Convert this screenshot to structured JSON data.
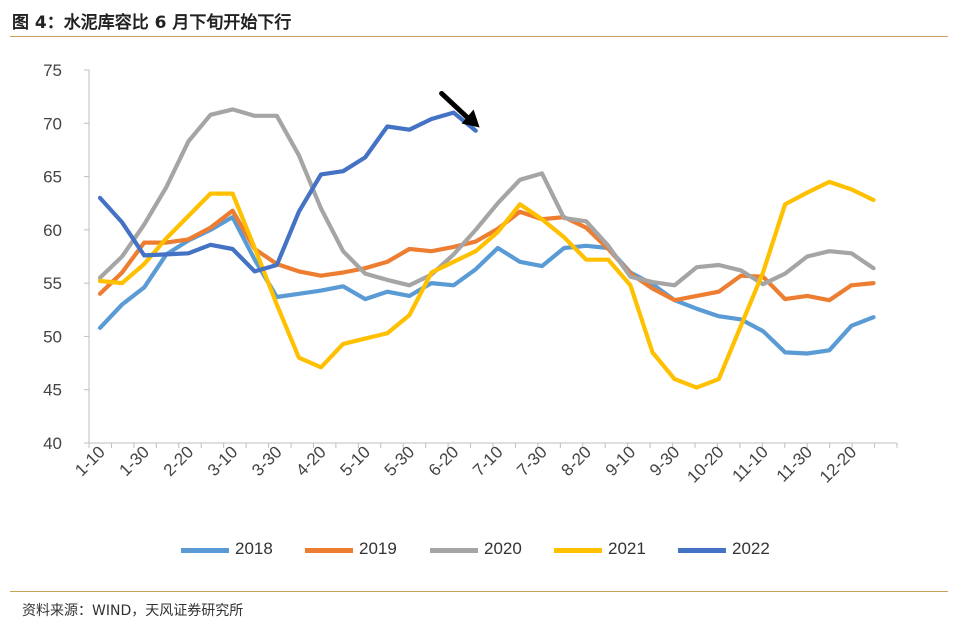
{
  "title": "图 4：水泥库容比 6 月下旬开始下行",
  "source": "资料来源：WIND，天风证券研究所",
  "chart_data": {
    "type": "line",
    "x": [
      "1-10",
      "1-20",
      "1-30",
      "2-10",
      "2-20",
      "2-28",
      "3-10",
      "3-20",
      "3-30",
      "4-10",
      "4-20",
      "4-30",
      "5-10",
      "5-20",
      "5-30",
      "6-10",
      "6-20",
      "6-30",
      "7-10",
      "7-20",
      "7-30",
      "8-10",
      "8-20",
      "8-30",
      "9-10",
      "9-20",
      "9-30",
      "10-10",
      "10-20",
      "10-30",
      "11-10",
      "11-20",
      "11-30",
      "12-10",
      "12-20",
      "12-30"
    ],
    "x_tick_labels": [
      "1-10",
      "1-30",
      "2-20",
      "3-10",
      "3-30",
      "4-20",
      "5-10",
      "5-30",
      "6-20",
      "7-10",
      "7-30",
      "8-20",
      "9-10",
      "9-30",
      "10-20",
      "11-10",
      "11-30",
      "12-20"
    ],
    "ylim": [
      40,
      75
    ],
    "yticks": [
      40,
      45,
      50,
      55,
      60,
      65,
      70,
      75
    ],
    "grid": false,
    "legend_position": "bottom",
    "annotation": "arrow-down-right-after-6-20",
    "series": [
      {
        "name": "2018",
        "color": "#5B9BD5",
        "values": [
          50.8,
          53.0,
          54.6,
          57.7,
          59.0,
          60.0,
          61.2,
          57.2,
          53.7,
          54.0,
          54.3,
          54.7,
          53.5,
          54.2,
          53.8,
          55.0,
          54.8,
          56.3,
          58.3,
          57.0,
          56.6,
          58.3,
          58.5,
          58.3,
          56.0,
          54.9,
          53.4,
          52.6,
          51.9,
          51.6,
          50.5,
          48.5,
          48.4,
          48.7,
          51.0,
          51.8
        ]
      },
      {
        "name": "2019",
        "color": "#ED7D31",
        "values": [
          54.0,
          56.0,
          58.8,
          58.8,
          59.1,
          60.2,
          61.8,
          58.2,
          56.8,
          56.1,
          55.7,
          56.0,
          56.4,
          57.0,
          58.2,
          58.0,
          58.4,
          58.9,
          60.1,
          61.7,
          61.0,
          61.2,
          60.2,
          58.2,
          55.9,
          54.5,
          53.4,
          53.8,
          54.2,
          55.7,
          55.6,
          53.5,
          53.8,
          53.4,
          54.8,
          55.0
        ]
      },
      {
        "name": "2020",
        "color": "#A5A5A5",
        "values": [
          55.5,
          57.5,
          60.5,
          64.0,
          68.3,
          70.8,
          71.3,
          70.7,
          70.7,
          67.0,
          62.0,
          58.0,
          55.9,
          55.3,
          54.8,
          55.8,
          57.7,
          60.0,
          62.5,
          64.7,
          65.3,
          61.1,
          60.8,
          58.5,
          55.6,
          55.1,
          54.8,
          56.5,
          56.7,
          56.2,
          54.9,
          55.9,
          57.5,
          58.0,
          57.8,
          56.4
        ]
      },
      {
        "name": "2021",
        "color": "#FFC000",
        "values": [
          55.2,
          55.0,
          56.8,
          59.2,
          61.3,
          63.4,
          63.4,
          58.3,
          53.0,
          48.0,
          47.1,
          49.3,
          49.8,
          50.3,
          52.0,
          56.0,
          57.0,
          58.0,
          59.8,
          62.4,
          61.0,
          59.3,
          57.2,
          57.2,
          54.8,
          48.5,
          46.0,
          45.2,
          46.0,
          51.0,
          56.0,
          62.4,
          63.5,
          64.5,
          63.8,
          62.8
        ]
      },
      {
        "name": "2022",
        "color": "#4472C4",
        "values": [
          63.0,
          60.7,
          57.6,
          57.7,
          57.8,
          58.6,
          58.2,
          56.1,
          56.7,
          61.7,
          65.2,
          65.5,
          66.8,
          69.7,
          69.4,
          70.4,
          71.0,
          69.3,
          null,
          null,
          null,
          null,
          null,
          null,
          null,
          null,
          null,
          null,
          null,
          null,
          null,
          null,
          null,
          null,
          null,
          null
        ]
      }
    ]
  }
}
